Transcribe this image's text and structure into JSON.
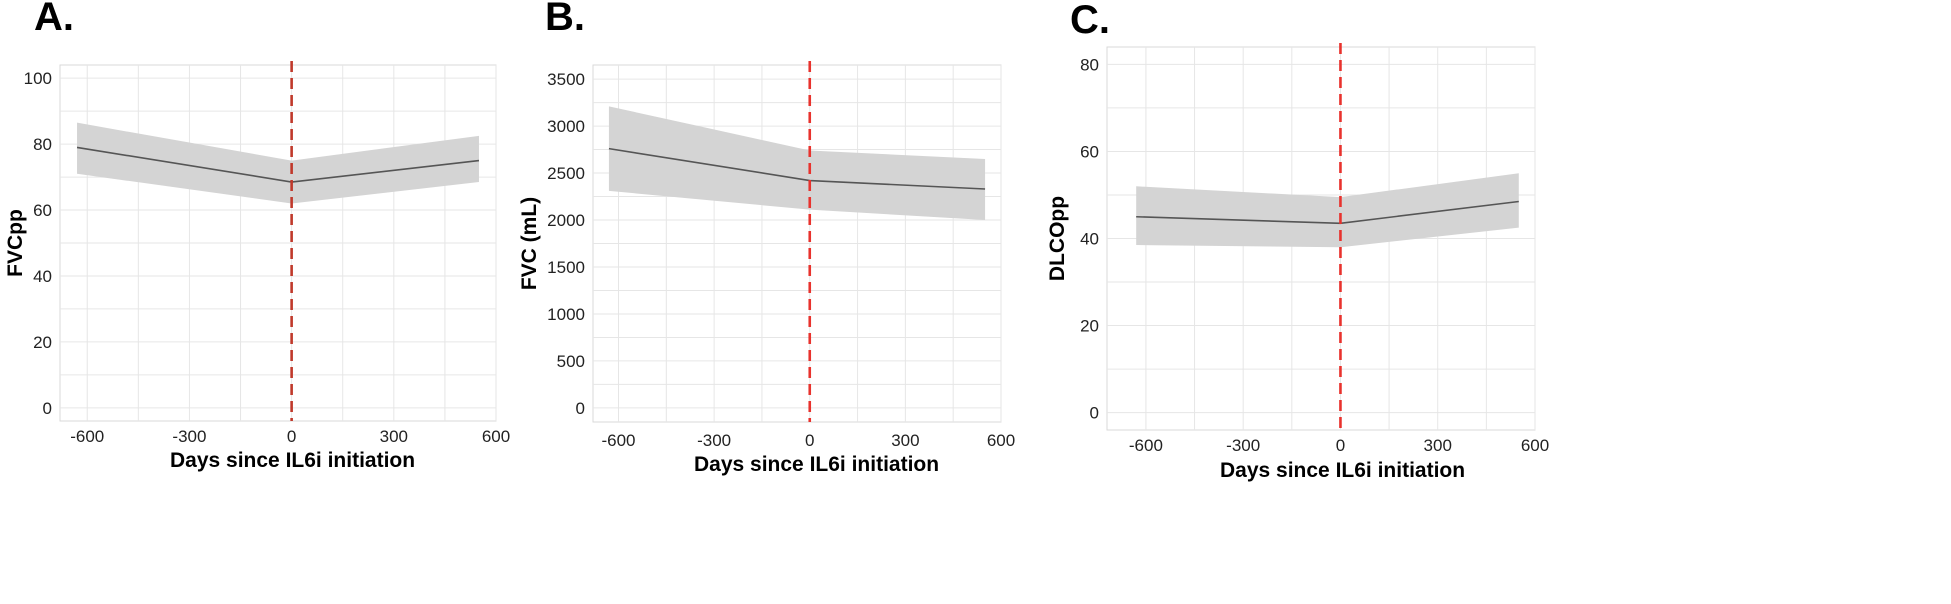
{
  "chart_data": [
    {
      "panel": "A.",
      "type": "line",
      "xlabel": "Days since IL6i initiation",
      "ylabel": "FVCpp",
      "xlim": [
        -680,
        600
      ],
      "ylim": [
        -4,
        104
      ],
      "xticks": [
        -600,
        -300,
        0,
        300,
        600
      ],
      "yticks": [
        0,
        20,
        40,
        60,
        80,
        100
      ],
      "x": [
        -630,
        0,
        550
      ],
      "y": [
        79,
        68.5,
        75
      ],
      "ci_lower": [
        71,
        62,
        68.5
      ],
      "ci_upper": [
        86.5,
        75,
        82.5
      ],
      "vline_x": 0,
      "vline_color": "#c0392b",
      "grid": true
    },
    {
      "panel": "B.",
      "type": "line",
      "xlabel": "Days since IL6i initiation",
      "ylabel": "FVC (mL)",
      "xlim": [
        -680,
        600
      ],
      "ylim": [
        -150,
        3650
      ],
      "xticks": [
        -600,
        -300,
        0,
        300,
        600
      ],
      "yticks": [
        0,
        500,
        1000,
        1500,
        2000,
        2500,
        3000,
        3500
      ],
      "x": [
        -630,
        0,
        550
      ],
      "y": [
        2760,
        2420,
        2330
      ],
      "ci_lower": [
        2310,
        2110,
        2000
      ],
      "ci_upper": [
        3210,
        2740,
        2650
      ],
      "vline_x": 0,
      "vline_color": "#e8322d",
      "grid": true
    },
    {
      "panel": "C.",
      "type": "line",
      "xlabel": "Days since IL6i initiation",
      "ylabel": "DLCOpp",
      "xlim": [
        -720,
        600
      ],
      "ylim": [
        -4,
        84
      ],
      "xticks": [
        -600,
        -300,
        0,
        300,
        600
      ],
      "yticks": [
        0,
        20,
        40,
        60,
        80
      ],
      "x": [
        -630,
        0,
        550
      ],
      "y": [
        45,
        43.5,
        48.5
      ],
      "ci_lower": [
        38.5,
        38,
        42.5
      ],
      "ci_upper": [
        52,
        49.5,
        55
      ],
      "vline_x": 0,
      "vline_color": "#e8322d",
      "grid": true
    }
  ]
}
